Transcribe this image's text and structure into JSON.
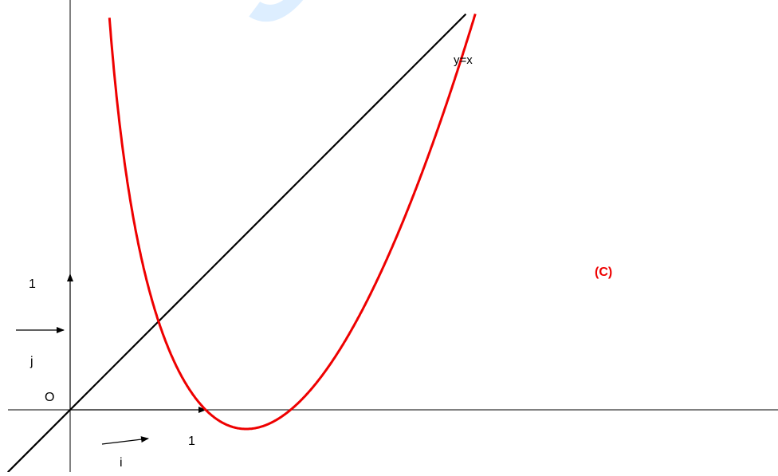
{
  "watermark": "gra",
  "chart_data": {
    "type": "line",
    "xlim": [
      -0.35,
      4.0
    ],
    "ylim": [
      -0.35,
      2.3
    ],
    "series": [
      {
        "name": "(C)",
        "color": "#ee0000",
        "function": "x*(ln x)^2 + 1/x - 1"
      },
      {
        "name": "y=x",
        "color": "#000000",
        "function": "x"
      }
    ],
    "axes": {
      "color": "#000000",
      "origin_label": "O"
    },
    "ticks": {
      "x_unit_label": "1",
      "y_unit_label": "1"
    },
    "vectors": {
      "i_label": "i",
      "j_label": "j"
    },
    "labels": {
      "curve_label": "(C)",
      "line_label": "y=x"
    },
    "colors": {
      "curve": "#ee0000",
      "line": "#000000",
      "watermark": "#ddeeff"
    }
  }
}
